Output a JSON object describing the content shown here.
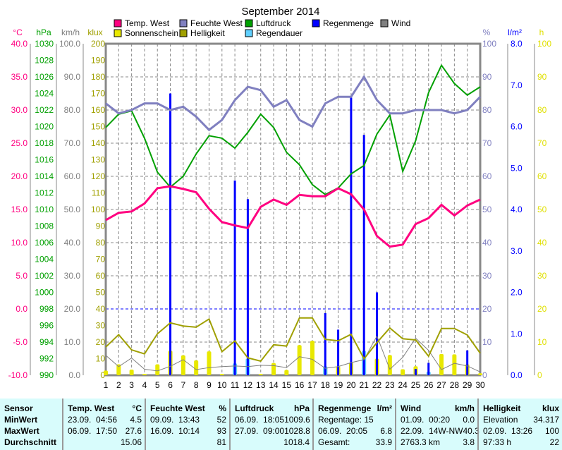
{
  "chart_data": {
    "type": "line",
    "title": "September 2014",
    "x": [
      1,
      2,
      3,
      4,
      5,
      6,
      7,
      8,
      9,
      10,
      11,
      12,
      13,
      14,
      15,
      16,
      17,
      18,
      19,
      20,
      21,
      22,
      23,
      24,
      25,
      26,
      27,
      28,
      29,
      30
    ],
    "legend": [
      {
        "name": "Temp. West",
        "color": "#ff0080"
      },
      {
        "name": "Feuchte West",
        "color": "#8080c0"
      },
      {
        "name": "Luftdruck",
        "color": "#00a000"
      },
      {
        "name": "Regenmenge",
        "color": "#0000ff"
      },
      {
        "name": "Wind",
        "color": "#808080"
      },
      {
        "name": "Sonnenschein",
        "color": "#e8e800"
      },
      {
        "name": "Helligkeit",
        "color": "#a0a000"
      },
      {
        "name": "Regendauer",
        "color": "#60d0ff"
      }
    ],
    "axes": {
      "temp": {
        "unit": "°C",
        "range": [
          -10,
          40
        ],
        "color": "#ff0080",
        "ticks": [
          "40.0",
          "35.0",
          "30.0",
          "25.0",
          "20.0",
          "15.0",
          "10.0",
          "5.0",
          "0.0",
          "-5.0",
          "-10.0"
        ]
      },
      "pressure": {
        "unit": "hPa",
        "range": [
          990,
          1030
        ],
        "color": "#00a000",
        "ticks": [
          "1030",
          "1028",
          "1026",
          "1024",
          "1022",
          "1020",
          "1018",
          "1016",
          "1014",
          "1012",
          "1010",
          "1008",
          "1006",
          "1004",
          "1002",
          "1000",
          "998",
          "996",
          "994",
          "992",
          "990"
        ]
      },
      "wind": {
        "unit": "km/h",
        "range": [
          0,
          100
        ],
        "color": "#808080",
        "ticks": [
          "100.0",
          "90.0",
          "80.0",
          "70.0",
          "60.0",
          "50.0",
          "40.0",
          "30.0",
          "20.0",
          "10.0",
          "0.0"
        ]
      },
      "light": {
        "unit": "klux",
        "range": [
          0,
          200
        ],
        "color": "#a0a000",
        "ticks": [
          "200",
          "190",
          "180",
          "170",
          "160",
          "150",
          "140",
          "130",
          "120",
          "110",
          "100",
          "90",
          "80",
          "70",
          "60",
          "50",
          "40",
          "30",
          "20",
          "10",
          "0"
        ]
      },
      "humidity": {
        "unit": "%",
        "range": [
          0,
          100
        ],
        "color": "#8080c0",
        "ticks": [
          "100",
          "90",
          "80",
          "70",
          "60",
          "50",
          "40",
          "30",
          "20",
          "10",
          "0"
        ]
      },
      "rain": {
        "unit": "l/m²",
        "range": [
          0,
          8
        ],
        "color": "#0000ff",
        "ticks": [
          "8.0",
          "7.0",
          "6.0",
          "5.0",
          "4.0",
          "3.0",
          "2.0",
          "1.0",
          "0.0"
        ]
      },
      "hours": {
        "unit": "h",
        "range": [
          0,
          100
        ],
        "color": "#e0e000",
        "ticks": [
          "100",
          "90",
          "80",
          "70",
          "60",
          "50",
          "40",
          "30",
          "20",
          "10",
          "0"
        ]
      }
    },
    "series": {
      "temp": [
        13.4,
        14.5,
        14.7,
        15.9,
        18.2,
        18.5,
        18.1,
        17.6,
        15.1,
        13.1,
        12.6,
        12.2,
        15.4,
        16.5,
        15.7,
        17.2,
        17.0,
        17.0,
        18.2,
        17.3,
        15.0,
        11.0,
        9.4,
        9.7,
        12.8,
        13.7,
        15.7,
        14.1,
        15.6,
        16.5
      ],
      "humidity": [
        82,
        79,
        80,
        82,
        82,
        80,
        81,
        78,
        74,
        77,
        83,
        87,
        86,
        81,
        83,
        77,
        75,
        82,
        84,
        84,
        90,
        83,
        79,
        79,
        80,
        80,
        80,
        79,
        80,
        84
      ],
      "pressure": [
        1019.9,
        1021.5,
        1021.9,
        1018.6,
        1014.5,
        1012.7,
        1014.0,
        1016.7,
        1018.9,
        1018.6,
        1017.4,
        1019.3,
        1021.5,
        1019.9,
        1016.9,
        1015.4,
        1013.0,
        1011.8,
        1012.6,
        1014.3,
        1015.3,
        1019.1,
        1021.4,
        1014.6,
        1018.3,
        1024.1,
        1027.4,
        1025.2,
        1023.8,
        1024.8
      ],
      "light": [
        17,
        24.5,
        15.3,
        12.9,
        25,
        31.6,
        29.7,
        29,
        33.9,
        14.2,
        20.7,
        10.5,
        8.5,
        18.4,
        17.6,
        34.6,
        34.6,
        21.6,
        20.8,
        24.7,
        9.9,
        19.7,
        28.5,
        22,
        21.3,
        11.5,
        28.2,
        28.2,
        24.3,
        13.3
      ],
      "wind": [
        6.0,
        2.6,
        5.2,
        1.8,
        1.3,
        2.7,
        4.7,
        1.7,
        2.3,
        2.6,
        2.8,
        2.6,
        3.0,
        2.9,
        2.3,
        5.6,
        4.8,
        2.1,
        2.6,
        3.8,
        4.7,
        11.8,
        1.8,
        5.4,
        11.2,
        7.5,
        1.7,
        3.6,
        2.8,
        1.0
      ],
      "rain": [
        0,
        0,
        0,
        0,
        0,
        6.8,
        0,
        0,
        0,
        0,
        4.7,
        4.25,
        0,
        0,
        0,
        0,
        0,
        1.5,
        1.1,
        6.7,
        5.8,
        2.0,
        0,
        0,
        0.15,
        0.3,
        0,
        0,
        0.6,
        0
      ],
      "sunshine": [
        1.4,
        3.3,
        1.7,
        0.4,
        3.3,
        7.4,
        6.0,
        4.5,
        7.2,
        0.4,
        3.3,
        0,
        0.4,
        3.7,
        1.6,
        9.1,
        10.4,
        2.6,
        2.6,
        3.8,
        0,
        5.0,
        6.1,
        1.8,
        2.7,
        0,
        6.4,
        6.3,
        3.3,
        0.6
      ],
      "raindur": [
        0,
        0,
        0,
        0,
        0,
        0,
        0,
        0,
        0,
        0,
        3.6,
        5.0,
        0,
        0,
        0,
        0,
        0,
        2.7,
        0,
        0,
        7.4,
        0,
        0,
        0,
        0,
        1.1,
        0,
        0,
        0,
        0
      ]
    },
    "reference_line": {
      "axis": "humidity",
      "value": 20
    }
  },
  "stats": {
    "columns": [
      {
        "title": "Sensor",
        "unit": "",
        "rows": [
          [
            "MinWert",
            ""
          ],
          [
            "MaxWert",
            ""
          ],
          [
            "Durchschnitt",
            ""
          ]
        ]
      },
      {
        "title": "Temp. West",
        "unit": "°C",
        "rows": [
          [
            "23.09.  04:56",
            "4.5"
          ],
          [
            "06.09.  17:50",
            "27.6"
          ],
          [
            "",
            "15.06"
          ]
        ]
      },
      {
        "title": "Feuchte West",
        "unit": "%",
        "rows": [
          [
            "09.09.  13:43",
            "52"
          ],
          [
            "16.09.  10:14",
            "93"
          ],
          [
            "",
            "81"
          ]
        ]
      },
      {
        "title": "Luftdruck",
        "unit": "hPa",
        "rows": [
          [
            "06.09.  18:05",
            "1009.6"
          ],
          [
            "27.09.  09:00",
            "1028.8"
          ],
          [
            "",
            "1018.4"
          ]
        ]
      },
      {
        "title": "Regenmenge",
        "unit": "l/m²",
        "rows": [
          [
            "Regentage: 15",
            ""
          ],
          [
            "06.09.  20:05",
            "6.8"
          ],
          [
            "Gesamt:",
            "33.9"
          ]
        ]
      },
      {
        "title": "Wind",
        "unit": "km/h",
        "rows": [
          [
            "01.09.  00:20",
            "0.0"
          ],
          [
            "22.09.  14W-NW",
            "40.3"
          ],
          [
            "2763.3 km",
            "3.8"
          ]
        ]
      },
      {
        "title": "Helligkeit",
        "unit": "klux",
        "rows": [
          [
            "Elevation",
            "34.317"
          ],
          [
            "02.09.  13:26",
            "100"
          ],
          [
            "97:33 h",
            "22"
          ]
        ]
      }
    ]
  }
}
